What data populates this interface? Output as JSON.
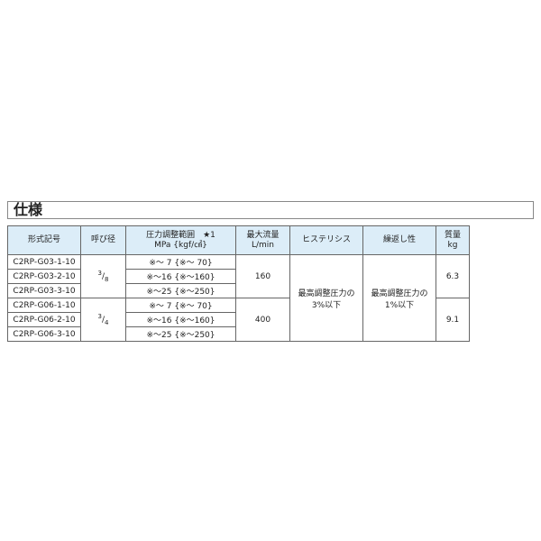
{
  "title": "仕様",
  "headers": [
    "形式記号",
    "呼び径",
    "圧力調整範囲　★1",
    "MPa {kgf/㎠}",
    "最大流量",
    "L/min",
    "ヒステリシス",
    "繰返し性",
    "質量",
    "kg"
  ],
  "rows": [
    {
      "model": "C2RP-G03-1-10",
      "range": "※～ 7 {※～ 70}"
    },
    {
      "model": "C2RP-G03-2-10",
      "range": "※～16 {※～160}"
    },
    {
      "model": "C2RP-G03-3-10",
      "range": "※～25 {※～250}"
    },
    {
      "model": "C2RP-G06-1-10",
      "range": "※～ 7 {※～ 70}"
    },
    {
      "model": "C2RP-G06-2-10",
      "range": "※～16 {※～160}"
    },
    {
      "model": "C2RP-G06-3-10",
      "range": "※～25 {※～250}"
    }
  ],
  "groups": [
    {
      "size_num": "3",
      "size_den": "8",
      "flow": "160",
      "mass": "6.3"
    },
    {
      "size_num": "3",
      "size_den": "4",
      "flow": "400",
      "mass": "9.1"
    }
  ],
  "hysteresis": [
    "最高調整圧力の",
    "3%以下"
  ],
  "repeatability": [
    "最高調整圧力の",
    "1%以下"
  ]
}
